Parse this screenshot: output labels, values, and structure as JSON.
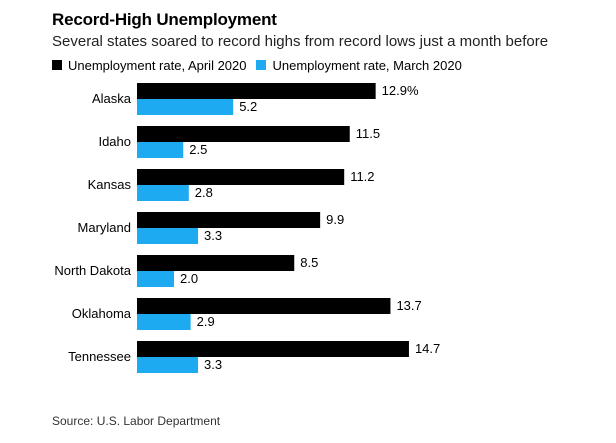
{
  "chart_data": {
    "type": "bar",
    "orientation": "horizontal",
    "title": "Record-High Unemployment",
    "subtitle": "Several states soared to record highs from record lows just a month before",
    "categories": [
      "Alaska",
      "Idaho",
      "Kansas",
      "Maryland",
      "North Dakota",
      "Oklahoma",
      "Tennessee"
    ],
    "series": [
      {
        "name": "Unemployment rate, April 2020",
        "color": "#000000",
        "values": [
          12.9,
          11.5,
          11.2,
          9.9,
          8.5,
          13.7,
          14.7
        ],
        "labels": [
          "12.9%",
          "11.5",
          "11.2",
          "9.9",
          "8.5",
          "13.7",
          "14.7"
        ]
      },
      {
        "name": "Unemployment rate, March 2020",
        "color": "#1eaaf1",
        "values": [
          5.2,
          2.5,
          2.8,
          3.3,
          2.0,
          2.9,
          3.3
        ],
        "labels": [
          "5.2",
          "2.5",
          "2.8",
          "3.3",
          "2.0",
          "2.9",
          "3.3"
        ]
      }
    ],
    "xlim": [
      0,
      15
    ],
    "grid": false,
    "legend": "top-left",
    "source": "Source: U.S. Labor Department"
  }
}
